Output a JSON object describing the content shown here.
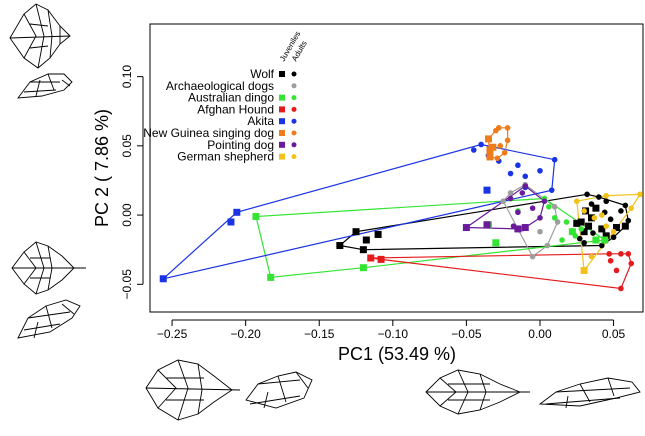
{
  "chart_data": {
    "type": "scatter",
    "xlabel": "PC1 (53.49 %)",
    "ylabel": "PC 2 ( 7.86 %)",
    "xlim": [
      -0.265,
      0.07
    ],
    "ylim": [
      -0.07,
      0.138
    ],
    "xticks": [
      -0.25,
      -0.2,
      -0.15,
      -0.1,
      -0.05,
      0.0,
      0.05
    ],
    "xtick_labels": [
      "−0.25",
      "−0.20",
      "−0.15",
      "−0.10",
      "−0.05",
      "0.00",
      "0.05"
    ],
    "yticks": [
      -0.05,
      0.0,
      0.05,
      0.1
    ],
    "ytick_labels": [
      "−0.05",
      "0.00",
      "0.05",
      "0.10"
    ],
    "grid": false,
    "legend_placement": "top-left",
    "legend_column_headers": [
      "Juveniles",
      "Adults"
    ],
    "convex_hulls": true,
    "marker_legend": {
      "juveniles": "square",
      "adults": "circle"
    },
    "series": [
      {
        "name": "Wolf",
        "color": "#000000",
        "juveniles": [
          [
            -0.136,
            -0.022
          ],
          [
            -0.125,
            -0.012
          ],
          [
            -0.12,
            -0.025
          ],
          [
            -0.118,
            -0.018
          ],
          [
            -0.11,
            -0.014
          ],
          [
            0.028,
            -0.005
          ],
          [
            0.031,
            0.003
          ],
          [
            0.035,
            -0.002
          ],
          [
            0.038,
            0.005
          ],
          [
            0.033,
            -0.008
          ],
          [
            0.03,
            -0.012
          ],
          [
            0.025,
            -0.006
          ],
          [
            0.042,
            -0.01
          ],
          [
            0.045,
            -0.015
          ],
          [
            0.052,
            -0.009
          ],
          [
            0.058,
            -0.008
          ]
        ],
        "adults": [
          [
            0.032,
            0.015
          ],
          [
            0.04,
            0.013
          ],
          [
            0.058,
            0.007
          ],
          [
            0.055,
            0.003
          ],
          [
            0.06,
            -0.004
          ],
          [
            0.05,
            -0.016
          ],
          [
            0.042,
            -0.022
          ],
          [
            0.038,
            -0.018
          ],
          [
            0.03,
            -0.02
          ],
          [
            0.035,
            0.008
          ],
          [
            0.045,
            0.01
          ],
          [
            0.048,
            -0.003
          ],
          [
            0.036,
            -0.013
          ],
          [
            0.044,
            0.002
          ],
          [
            0.027,
            -0.017
          ]
        ]
      },
      {
        "name": "Archaeological dogs",
        "color": "#9e9e9e",
        "juveniles": [],
        "adults": [
          [
            -0.01,
            0.022
          ],
          [
            -0.02,
            0.016
          ],
          [
            -0.025,
            0.01
          ],
          [
            -0.012,
            -0.01
          ],
          [
            -0.005,
            -0.03
          ],
          [
            0.0,
            -0.012
          ],
          [
            0.01,
            0.006
          ],
          [
            0.005,
            -0.022
          ],
          [
            0.012,
            -0.005
          ]
        ]
      },
      {
        "name": "Australian dingo",
        "color": "#33e433",
        "juveniles": [
          [
            -0.193,
            -0.001
          ],
          [
            -0.183,
            -0.045
          ],
          [
            -0.12,
            -0.038
          ],
          [
            -0.035,
            -0.007
          ],
          [
            -0.03,
            -0.02
          ],
          [
            0.022,
            -0.012
          ],
          [
            0.038,
            -0.018
          ],
          [
            0.044,
            -0.018
          ]
        ],
        "adults": [
          [
            0.003,
            0.012
          ],
          [
            0.006,
            0.006
          ],
          [
            -0.015,
            0.003
          ],
          [
            0.01,
            -0.002
          ],
          [
            0.018,
            -0.005
          ],
          [
            0.015,
            -0.018
          ],
          [
            0.028,
            -0.01
          ],
          [
            0.024,
            -0.015
          ]
        ]
      },
      {
        "name": "Afghan Hound",
        "color": "#e41a1c",
        "juveniles": [
          [
            -0.115,
            -0.031
          ],
          [
            -0.108,
            -0.032
          ]
        ],
        "adults": [
          [
            0.047,
            -0.028
          ],
          [
            0.055,
            -0.028
          ],
          [
            0.06,
            -0.028
          ],
          [
            0.052,
            -0.04
          ],
          [
            0.055,
            -0.053
          ],
          [
            0.062,
            -0.035
          ],
          [
            0.048,
            -0.033
          ]
        ]
      },
      {
        "name": "Akita",
        "color": "#1a33e4",
        "juveniles": [
          [
            -0.256,
            -0.046
          ],
          [
            -0.21,
            -0.005
          ],
          [
            -0.206,
            0.002
          ],
          [
            -0.036,
            0.018
          ]
        ],
        "adults": [
          [
            -0.045,
            0.047
          ],
          [
            -0.04,
            0.051
          ],
          [
            -0.035,
            0.043
          ],
          [
            -0.028,
            0.039
          ],
          [
            -0.02,
            0.03
          ],
          [
            -0.01,
            0.028
          ],
          [
            -0.015,
            0.036
          ],
          [
            0.0,
            0.032
          ],
          [
            0.01,
            0.04
          ],
          [
            0.008,
            0.018
          ],
          [
            -0.01,
            0.02
          ]
        ]
      },
      {
        "name": "New Guinea singing dog",
        "color": "#ee7c1a",
        "juveniles": [
          [
            -0.035,
            0.055
          ],
          [
            -0.034,
            0.047
          ],
          [
            -0.034,
            0.042
          ],
          [
            -0.032,
            0.049
          ]
        ],
        "adults": [
          [
            -0.03,
            0.061
          ],
          [
            -0.028,
            0.063
          ],
          [
            -0.022,
            0.063
          ],
          [
            -0.022,
            0.054
          ],
          [
            -0.024,
            0.045
          ],
          [
            -0.029,
            0.041
          ],
          [
            -0.027,
            0.05
          ]
        ]
      },
      {
        "name": "Pointing dog",
        "color": "#6a1a9a",
        "juveniles": [
          [
            -0.05,
            -0.009
          ],
          [
            -0.036,
            -0.007
          ],
          [
            -0.015,
            -0.01
          ],
          [
            -0.01,
            -0.009
          ]
        ],
        "adults": [
          [
            -0.01,
            0.021
          ],
          [
            -0.012,
            0.016
          ],
          [
            -0.015,
            0.002
          ],
          [
            -0.018,
            -0.008
          ],
          [
            0.003,
            0.01
          ],
          [
            -0.005,
            0.005
          ],
          [
            0.0,
            -0.002
          ],
          [
            -0.02,
            0.012
          ]
        ]
      },
      {
        "name": "German shepherd",
        "color": "#f2c21a",
        "juveniles": [
          [
            0.03,
            -0.04
          ]
        ],
        "adults": [
          [
            0.025,
            0.01
          ],
          [
            0.045,
            0.014
          ],
          [
            0.068,
            0.015
          ],
          [
            0.062,
            0.005
          ],
          [
            0.03,
            0.003
          ],
          [
            0.037,
            -0.002
          ],
          [
            0.042,
            0.0
          ],
          [
            0.035,
            -0.03
          ],
          [
            0.05,
            -0.012
          ],
          [
            0.045,
            -0.008
          ]
        ]
      }
    ]
  }
}
